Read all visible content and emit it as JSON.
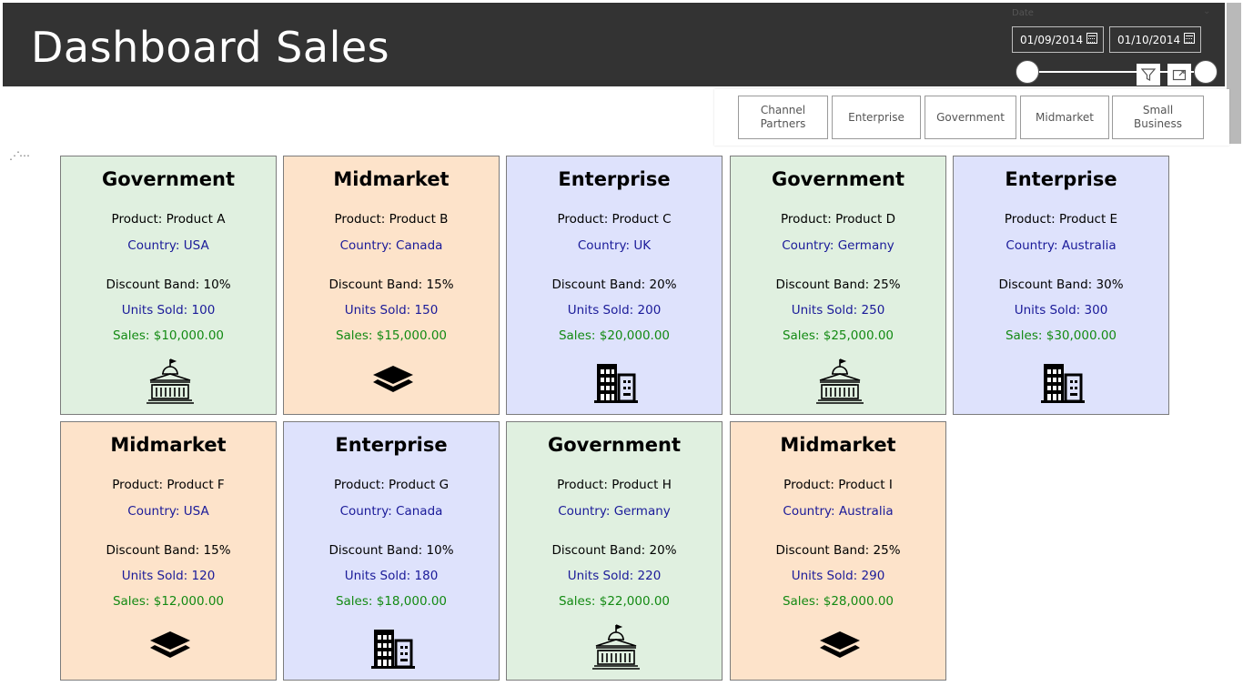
{
  "header": {
    "title": "Dashboard Sales"
  },
  "date_slicer": {
    "label": "Date",
    "start": "01/09/2014",
    "end": "01/10/2014",
    "range_start_fraction": 0,
    "range_end_fraction": 1
  },
  "visual_header": {
    "filter_icon": "filter-icon",
    "focus_icon": "focus-mode-icon"
  },
  "segment_slicer": {
    "options": [
      "Channel Partners",
      "Enterprise",
      "Government",
      "Midmarket",
      "Small Business"
    ]
  },
  "colors": {
    "government": "#e0f0e0",
    "midmarket": "#fde3ca",
    "enterprise": "#dee2fc",
    "country_text": "#1a1a99",
    "sales_text": "#138a13",
    "header_bg": "#333333"
  },
  "cards": [
    {
      "segment": "Government",
      "product": "Product: Product A",
      "country": "Country: USA",
      "discount": "Discount Band: 10%",
      "units": "Units Sold: 100",
      "sales": "Sales: $10,000.00",
      "icon": "government-building-icon"
    },
    {
      "segment": "Midmarket",
      "product": "Product: Product B",
      "country": "Country: Canada",
      "discount": "Discount Band: 15%",
      "units": "Units Sold: 150",
      "sales": "Sales: $15,000.00",
      "icon": "layers-icon"
    },
    {
      "segment": "Enterprise",
      "product": "Product: Product C",
      "country": "Country: UK",
      "discount": "Discount Band: 20%",
      "units": "Units Sold: 200",
      "sales": "Sales: $20,000.00",
      "icon": "office-buildings-icon"
    },
    {
      "segment": "Government",
      "product": "Product: Product D",
      "country": "Country: Germany",
      "discount": "Discount Band: 25%",
      "units": "Units Sold: 250",
      "sales": "Sales: $25,000.00",
      "icon": "government-building-icon"
    },
    {
      "segment": "Enterprise",
      "product": "Product: Product E",
      "country": "Country: Australia",
      "discount": "Discount Band: 30%",
      "units": "Units Sold: 300",
      "sales": "Sales: $30,000.00",
      "icon": "office-buildings-icon"
    },
    {
      "segment": "Midmarket",
      "product": "Product: Product F",
      "country": "Country: USA",
      "discount": "Discount Band: 15%",
      "units": "Units Sold: 120",
      "sales": "Sales: $12,000.00",
      "icon": "layers-icon"
    },
    {
      "segment": "Enterprise",
      "product": "Product: Product G",
      "country": "Country: Canada",
      "discount": "Discount Band: 10%",
      "units": "Units Sold: 180",
      "sales": "Sales: $18,000.00",
      "icon": "office-buildings-icon"
    },
    {
      "segment": "Government",
      "product": "Product: Product H",
      "country": "Country: Germany",
      "discount": "Discount Band: 20%",
      "units": "Units Sold: 220",
      "sales": "Sales: $22,000.00",
      "icon": "government-building-icon"
    },
    {
      "segment": "Midmarket",
      "product": "Product: Product I",
      "country": "Country: Australia",
      "discount": "Discount Band: 25%",
      "units": "Units Sold: 290",
      "sales": "Sales: $28,000.00",
      "icon": "layers-icon"
    }
  ]
}
